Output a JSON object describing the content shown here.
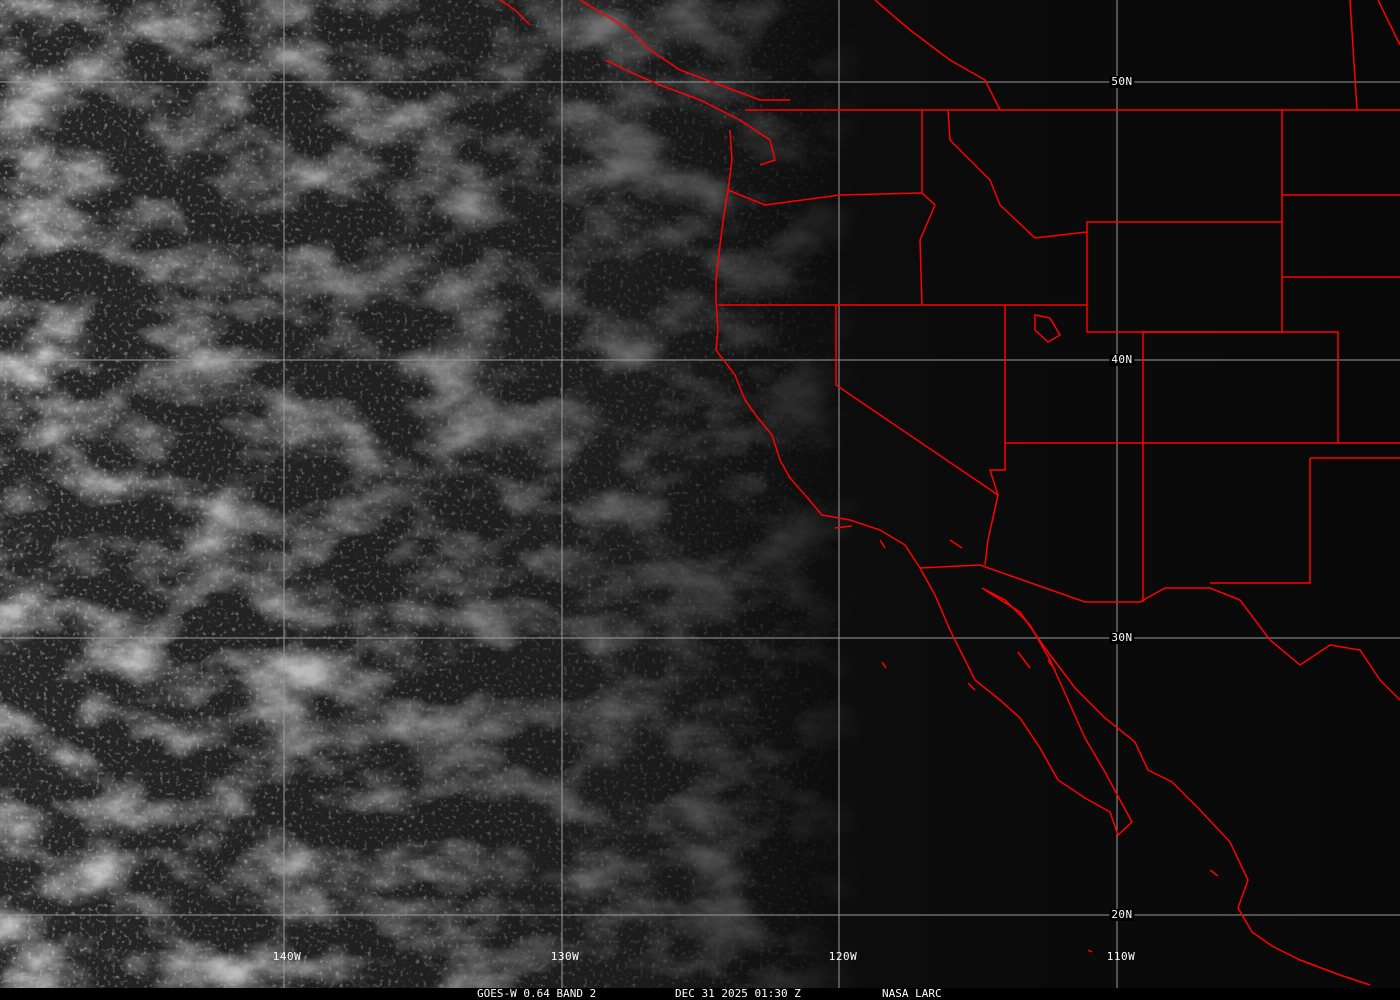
{
  "imagery": {
    "satellite": "GOES-W",
    "channel": "0.64 BAND 2",
    "coastline_color": "#ff0000",
    "grid_color": "#9a9a9a"
  },
  "footer": {
    "product": "GOES-W 0.64 BAND 2",
    "datetime": "DEC 31 2025 01:30 Z",
    "credit": "NASA LARC"
  },
  "grid": {
    "latitudes": [
      "50N",
      "40N",
      "30N",
      "20N"
    ],
    "longitudes": [
      "140W",
      "130W",
      "120W",
      "110W"
    ]
  }
}
